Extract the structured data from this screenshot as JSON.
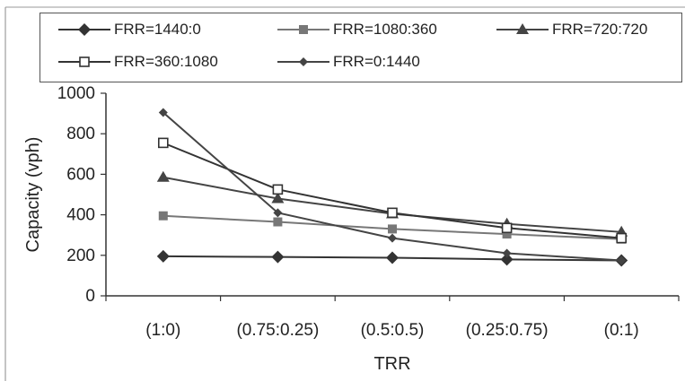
{
  "chart_data": {
    "type": "line",
    "xlabel": "TRR",
    "ylabel": "Capacity (vph)",
    "ylim": [
      0,
      1000
    ],
    "yticks": [
      0,
      200,
      400,
      600,
      800,
      1000
    ],
    "categories": [
      "(1:0)",
      "(0.75:0.25)",
      "(0.5:0.5)",
      "(0.25:0.75)",
      "(0:1)"
    ],
    "grid": false,
    "legend_position": "top",
    "series": [
      {
        "name": "FRR=1440:0",
        "marker": "diamond",
        "color": "#333333",
        "values": [
          195,
          192,
          188,
          180,
          175
        ]
      },
      {
        "name": "FRR=1080:360",
        "marker": "square",
        "color": "#777777",
        "values": [
          395,
          365,
          330,
          305,
          280
        ]
      },
      {
        "name": "FRR=720:720",
        "marker": "triangle",
        "color": "#444444",
        "values": [
          585,
          480,
          405,
          355,
          315
        ]
      },
      {
        "name": "FRR=360:1080",
        "marker": "square-open",
        "color": "#333333",
        "values": [
          755,
          525,
          410,
          335,
          285
        ]
      },
      {
        "name": "FRR=0:1440",
        "marker": "diamond-small",
        "color": "#444444",
        "values": [
          905,
          410,
          285,
          210,
          175
        ]
      }
    ]
  }
}
